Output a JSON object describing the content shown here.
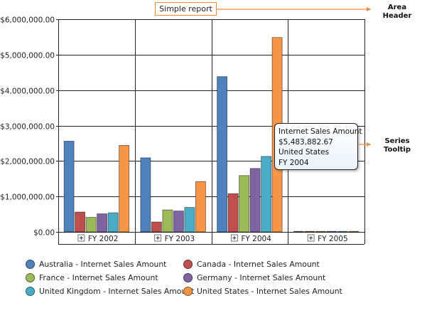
{
  "header": {
    "title": "Simple report"
  },
  "annotations": {
    "area_header": "Area\nHeader",
    "series_tooltip": "Series\nTooltip"
  },
  "tooltip": {
    "measure": "Internet Sales Amount",
    "value": "$5,483,882.67",
    "country": "United States",
    "year": "FY 2004"
  },
  "chart_data": {
    "type": "bar",
    "title": "",
    "xlabel": "",
    "ylabel": "",
    "ylim": [
      0,
      6000000
    ],
    "yticks": [
      {
        "value": 0,
        "label": "$0.00"
      },
      {
        "value": 1000000,
        "label": "$1,000,000.00"
      },
      {
        "value": 2000000,
        "label": "$2,000,000.00"
      },
      {
        "value": 3000000,
        "label": "$3,000,000.00"
      },
      {
        "value": 4000000,
        "label": "$4,000,000.00"
      },
      {
        "value": 5000000,
        "label": "$5,000,000.00"
      },
      {
        "value": 6000000,
        "label": "$6,000,000.00"
      }
    ],
    "grid": true,
    "legend_position": "bottom",
    "categories": [
      "FY 2002",
      "FY 2003",
      "FY 2004",
      "FY 2005"
    ],
    "category_expand_icon": "plus-box-icon",
    "series": [
      {
        "name": "Australia - Internet Sales Amount",
        "color": "#4f81bd",
        "values": [
          2560000,
          2090000,
          4380000,
          10000
        ]
      },
      {
        "name": "Canada - Internet Sales Amount",
        "color": "#c0504d",
        "values": [
          560000,
          280000,
          1080000,
          5000
        ]
      },
      {
        "name": "France - Internet Sales Amount",
        "color": "#9bbb59",
        "values": [
          410000,
          620000,
          1590000,
          3000
        ]
      },
      {
        "name": "Germany - Internet Sales Amount",
        "color": "#8064a2",
        "values": [
          510000,
          590000,
          1790000,
          3000
        ]
      },
      {
        "name": "United Kingdom - Internet Sales Amount",
        "color": "#4bacc6",
        "values": [
          540000,
          690000,
          2130000,
          4000
        ]
      },
      {
        "name": "United States - Internet Sales Amount",
        "color": "#f79646",
        "values": [
          2440000,
          1420000,
          5483882.67,
          12000
        ]
      }
    ]
  }
}
